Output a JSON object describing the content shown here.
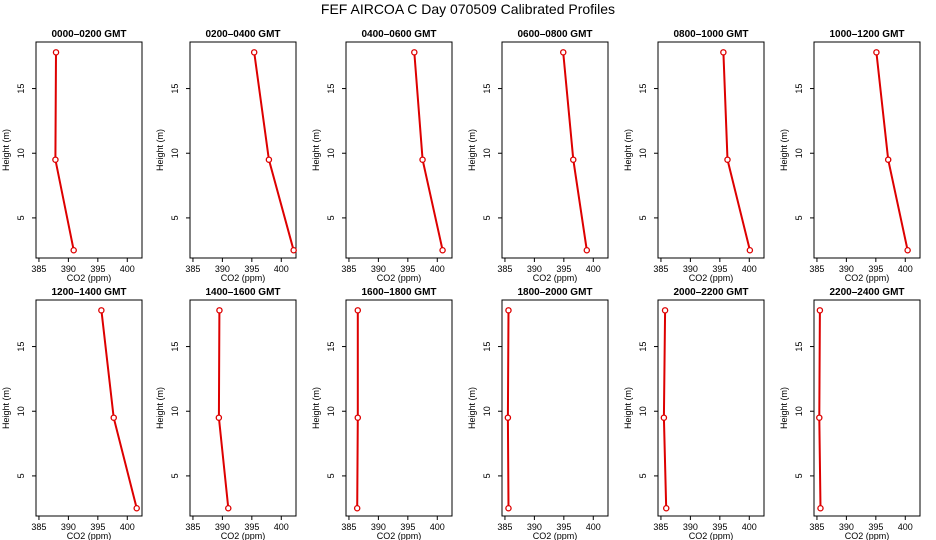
{
  "title": "FEF AIRCOA C  Day 070509  Calibrated Profiles",
  "colors": {
    "series": "#dd0000",
    "axis": "#000000",
    "background": "#ffffff"
  },
  "chart_data": [
    {
      "type": "line",
      "title": "0000–0200 GMT",
      "xlabel": "CO2 (ppm)",
      "ylabel": "Height (m)",
      "xlim": [
        384.5,
        402.5
      ],
      "ylim": [
        1.9,
        18.6
      ],
      "xticks": [
        385,
        390,
        395,
        400
      ],
      "yticks": [
        5,
        10,
        15
      ],
      "x": [
        387.9,
        387.8,
        390.9
      ],
      "y": [
        17.8,
        9.5,
        2.5
      ]
    },
    {
      "type": "line",
      "title": "0200–0400 GMT",
      "xlabel": "CO2 (ppm)",
      "ylabel": "Height (m)",
      "xlim": [
        384.5,
        402.5
      ],
      "ylim": [
        1.9,
        18.6
      ],
      "xticks": [
        385,
        390,
        395,
        400
      ],
      "yticks": [
        5,
        10,
        15
      ],
      "x": [
        395.4,
        397.9,
        402.1
      ],
      "y": [
        17.8,
        9.5,
        2.5
      ]
    },
    {
      "type": "line",
      "title": "0400–0600 GMT",
      "xlabel": "CO2 (ppm)",
      "ylabel": "Height (m)",
      "xlim": [
        384.5,
        402.5
      ],
      "ylim": [
        1.9,
        18.6
      ],
      "xticks": [
        385,
        390,
        395,
        400
      ],
      "yticks": [
        5,
        10,
        15
      ],
      "x": [
        396.1,
        397.5,
        400.9
      ],
      "y": [
        17.8,
        9.5,
        2.5
      ]
    },
    {
      "type": "line",
      "title": "0600–0800 GMT",
      "xlabel": "CO2 (ppm)",
      "ylabel": "Height (m)",
      "xlim": [
        384.5,
        402.5
      ],
      "ylim": [
        1.9,
        18.6
      ],
      "xticks": [
        385,
        390,
        395,
        400
      ],
      "yticks": [
        5,
        10,
        15
      ],
      "x": [
        394.9,
        396.6,
        398.9
      ],
      "y": [
        17.8,
        9.5,
        2.5
      ]
    },
    {
      "type": "line",
      "title": "0800–1000 GMT",
      "xlabel": "CO2 (ppm)",
      "ylabel": "Height (m)",
      "xlim": [
        384.5,
        402.5
      ],
      "ylim": [
        1.9,
        18.6
      ],
      "xticks": [
        385,
        390,
        395,
        400
      ],
      "yticks": [
        5,
        10,
        15
      ],
      "x": [
        395.6,
        396.3,
        400.1
      ],
      "y": [
        17.8,
        9.5,
        2.5
      ]
    },
    {
      "type": "line",
      "title": "1000–1200 GMT",
      "xlabel": "CO2 (ppm)",
      "ylabel": "Height (m)",
      "xlim": [
        384.5,
        402.5
      ],
      "ylim": [
        1.9,
        18.6
      ],
      "xticks": [
        385,
        390,
        395,
        400
      ],
      "yticks": [
        5,
        10,
        15
      ],
      "x": [
        395.1,
        397.1,
        400.4
      ],
      "y": [
        17.8,
        9.5,
        2.5
      ]
    },
    {
      "type": "line",
      "title": "1200–1400 GMT",
      "xlabel": "CO2 (ppm)",
      "ylabel": "Height (m)",
      "xlim": [
        384.5,
        402.5
      ],
      "ylim": [
        1.9,
        18.6
      ],
      "xticks": [
        385,
        390,
        395,
        400
      ],
      "yticks": [
        5,
        10,
        15
      ],
      "x": [
        395.6,
        397.7,
        401.6
      ],
      "y": [
        17.8,
        9.5,
        2.5
      ]
    },
    {
      "type": "line",
      "title": "1400–1600 GMT",
      "xlabel": "CO2 (ppm)",
      "ylabel": "Height (m)",
      "xlim": [
        384.5,
        402.5
      ],
      "ylim": [
        1.9,
        18.6
      ],
      "xticks": [
        385,
        390,
        395,
        400
      ],
      "yticks": [
        5,
        10,
        15
      ],
      "x": [
        389.5,
        389.4,
        391.0
      ],
      "y": [
        17.8,
        9.5,
        2.5
      ]
    },
    {
      "type": "line",
      "title": "1600–1800 GMT",
      "xlabel": "CO2 (ppm)",
      "ylabel": "Height (m)",
      "xlim": [
        384.5,
        402.5
      ],
      "ylim": [
        1.9,
        18.6
      ],
      "xticks": [
        385,
        390,
        395,
        400
      ],
      "yticks": [
        5,
        10,
        15
      ],
      "x": [
        386.5,
        386.5,
        386.4
      ],
      "y": [
        17.8,
        9.5,
        2.5
      ]
    },
    {
      "type": "line",
      "title": "1800–2000 GMT",
      "xlabel": "CO2 (ppm)",
      "ylabel": "Height (m)",
      "xlim": [
        384.5,
        402.5
      ],
      "ylim": [
        1.9,
        18.6
      ],
      "xticks": [
        385,
        390,
        395,
        400
      ],
      "yticks": [
        5,
        10,
        15
      ],
      "x": [
        385.6,
        385.5,
        385.6
      ],
      "y": [
        17.8,
        9.5,
        2.5
      ]
    },
    {
      "type": "line",
      "title": "2000–2200 GMT",
      "xlabel": "CO2 (ppm)",
      "ylabel": "Height (m)",
      "xlim": [
        384.5,
        402.5
      ],
      "ylim": [
        1.9,
        18.6
      ],
      "xticks": [
        385,
        390,
        395,
        400
      ],
      "yticks": [
        5,
        10,
        15
      ],
      "x": [
        385.7,
        385.5,
        385.9
      ],
      "y": [
        17.8,
        9.5,
        2.5
      ]
    },
    {
      "type": "line",
      "title": "2200–2400 GMT",
      "xlabel": "CO2 (ppm)",
      "ylabel": "Height (m)",
      "xlim": [
        384.5,
        402.5
      ],
      "ylim": [
        1.9,
        18.6
      ],
      "xticks": [
        385,
        390,
        395,
        400
      ],
      "yticks": [
        5,
        10,
        15
      ],
      "x": [
        385.5,
        385.4,
        385.6
      ],
      "y": [
        17.8,
        9.5,
        2.5
      ]
    }
  ]
}
